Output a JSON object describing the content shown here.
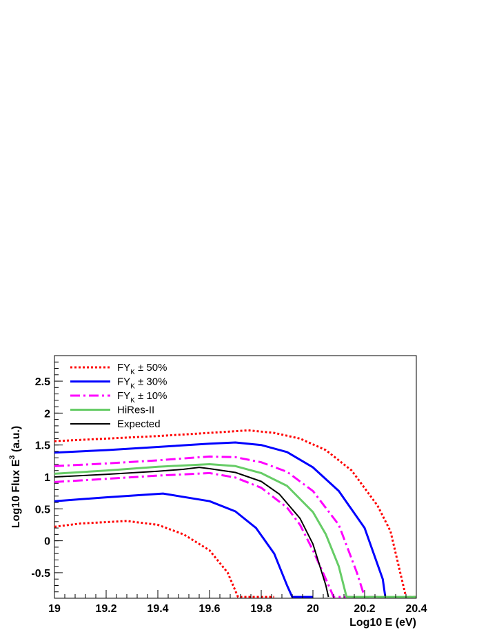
{
  "chart_data": {
    "type": "line",
    "xlabel": "Log10 E (eV)",
    "ylabel_main": "Log10 Flux E",
    "ylabel_sup": "3",
    "ylabel_tail": " (a.u.)",
    "xlim": [
      19,
      20.4
    ],
    "ylim": [
      -0.9,
      2.9
    ],
    "xticks": [
      "19",
      "19.2",
      "19.4",
      "19.6",
      "19.8",
      "20",
      "20.2",
      "20.4"
    ],
    "yticks": [
      "-0.5",
      "0",
      "0.5",
      "1",
      "1.5",
      "2",
      "2.5"
    ],
    "grid": false,
    "legend_position": "top-left",
    "legend": [
      {
        "main": "FY",
        "sub": "K",
        "tail": " ± 50%",
        "color": "#ff0000",
        "style": "dotted"
      },
      {
        "main": "FY",
        "sub": "K",
        "tail": " ± 30%",
        "color": "#0000ff",
        "style": "solid"
      },
      {
        "main": "FY",
        "sub": "K",
        "tail": " ± 10%",
        "color": "#ff00ff",
        "style": "dashdot"
      },
      {
        "main": "HiRes-II",
        "sub": "",
        "tail": "",
        "color": "#66cc66",
        "style": "solid"
      },
      {
        "main": "Expected",
        "sub": "",
        "tail": "",
        "color": "#000000",
        "style": "solid"
      }
    ],
    "series": [
      {
        "legend_index": 0,
        "color": "#ff0000",
        "style": "dotted",
        "x": [
          19.0,
          19.2,
          19.4,
          19.6,
          19.75,
          19.85,
          19.95,
          20.05,
          20.15,
          20.25,
          20.3,
          20.36,
          20.4
        ],
        "y": [
          1.56,
          1.6,
          1.64,
          1.69,
          1.73,
          1.69,
          1.6,
          1.42,
          1.1,
          0.55,
          0.15,
          -0.88,
          -0.88
        ]
      },
      {
        "legend_index": 0,
        "color": "#ff0000",
        "style": "dotted",
        "x": [
          19.0,
          19.1,
          19.28,
          19.4,
          19.5,
          19.6,
          19.67,
          19.71,
          19.72,
          19.85
        ],
        "y": [
          0.22,
          0.27,
          0.31,
          0.25,
          0.1,
          -0.15,
          -0.5,
          -0.88,
          -0.88,
          -0.88
        ]
      },
      {
        "legend_index": 1,
        "color": "#0000ff",
        "style": "solid",
        "x": [
          19.0,
          19.2,
          19.4,
          19.6,
          19.7,
          19.8,
          19.9,
          20.0,
          20.1,
          20.2,
          20.27,
          20.28
        ],
        "y": [
          1.38,
          1.42,
          1.47,
          1.52,
          1.54,
          1.5,
          1.39,
          1.15,
          0.78,
          0.2,
          -0.6,
          -0.88
        ]
      },
      {
        "legend_index": 1,
        "color": "#0000ff",
        "style": "solid",
        "x": [
          19.0,
          19.2,
          19.42,
          19.6,
          19.7,
          19.78,
          19.85,
          19.9,
          19.92,
          20.0
        ],
        "y": [
          0.62,
          0.68,
          0.74,
          0.62,
          0.46,
          0.2,
          -0.2,
          -0.7,
          -0.88,
          -0.88
        ]
      },
      {
        "legend_index": 2,
        "color": "#ff00ff",
        "style": "dashdot",
        "x": [
          19.0,
          19.2,
          19.4,
          19.6,
          19.7,
          19.8,
          19.9,
          20.0,
          20.1,
          20.17,
          20.2,
          20.25
        ],
        "y": [
          1.17,
          1.21,
          1.26,
          1.32,
          1.31,
          1.23,
          1.08,
          0.78,
          0.25,
          -0.5,
          -0.88,
          -0.88
        ]
      },
      {
        "legend_index": 2,
        "color": "#ff00ff",
        "style": "dashdot",
        "x": [
          19.0,
          19.2,
          19.4,
          19.6,
          19.7,
          19.8,
          19.9,
          19.95,
          20.0,
          20.05,
          20.08,
          20.15
        ],
        "y": [
          0.92,
          0.97,
          1.02,
          1.06,
          0.99,
          0.83,
          0.52,
          0.25,
          -0.15,
          -0.6,
          -0.88,
          -0.88
        ]
      },
      {
        "legend_index": 3,
        "color": "#66cc66",
        "style": "solid",
        "x": [
          19.0,
          19.2,
          19.4,
          19.6,
          19.7,
          19.8,
          19.9,
          20.0,
          20.05,
          20.1,
          20.13,
          20.4
        ],
        "y": [
          1.05,
          1.1,
          1.16,
          1.2,
          1.17,
          1.06,
          0.86,
          0.45,
          0.1,
          -0.4,
          -0.88,
          -0.88
        ]
      },
      {
        "legend_index": 4,
        "color": "#000000",
        "style": "solid",
        "x": [
          19.0,
          19.2,
          19.4,
          19.5,
          19.56,
          19.6,
          19.7,
          19.8,
          19.87,
          19.95,
          20.0,
          20.05,
          20.06
        ],
        "y": [
          1.0,
          1.04,
          1.09,
          1.12,
          1.15,
          1.13,
          1.07,
          0.93,
          0.73,
          0.35,
          -0.05,
          -0.7,
          -0.88
        ]
      }
    ]
  }
}
